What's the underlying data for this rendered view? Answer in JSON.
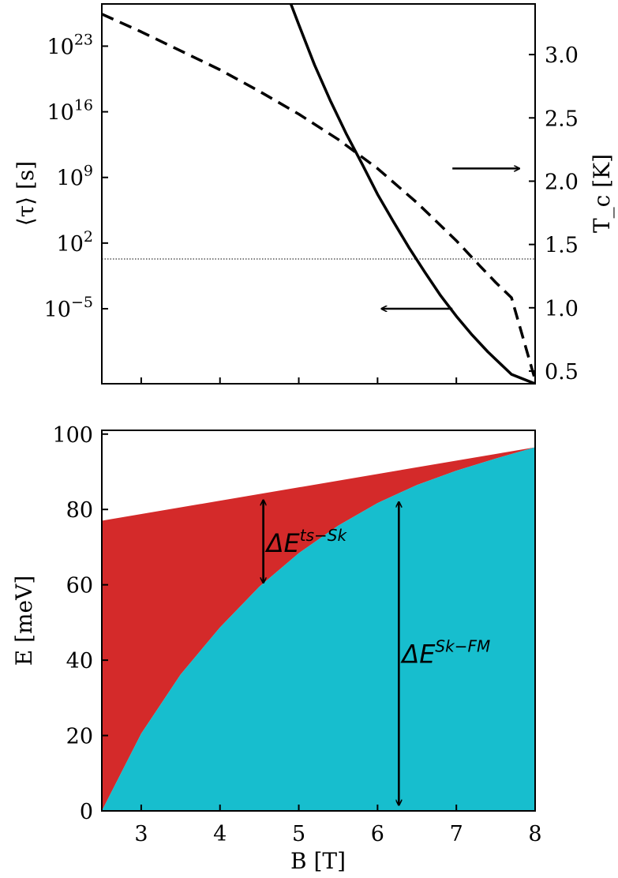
{
  "chart_data": [
    {
      "type": "line",
      "panel": "top",
      "xlabel": "",
      "ylabel": "⟨τ⟩ [s]",
      "ylabel_right": "T_c [K]",
      "xlim": [
        2.5,
        8.0
      ],
      "y_scale": "log",
      "ylim_log10": [
        -13,
        27.5
      ],
      "ylim_right": [
        0.4,
        3.4
      ],
      "y_ticks": [
        {
          "base": "10",
          "exp": "23",
          "log10": 23
        },
        {
          "base": "10",
          "exp": "16",
          "log10": 16
        },
        {
          "base": "10",
          "exp": "9",
          "log10": 9
        },
        {
          "base": "10",
          "exp": "2",
          "log10": 2
        },
        {
          "base": "10",
          "exp": "−5",
          "log10": -5
        }
      ],
      "y_right_ticks": [
        "3.0",
        "2.5",
        "2.0",
        "1.5",
        "1.0",
        "0.5"
      ],
      "y_right_tick_values": [
        3.0,
        2.5,
        2.0,
        1.5,
        1.0,
        0.5
      ],
      "series": [
        {
          "axis": "left",
          "style": "solid",
          "x": [
            4.9,
            5.0,
            5.2,
            5.4,
            5.6,
            5.8,
            6.0,
            6.2,
            6.4,
            6.6,
            6.8,
            7.0,
            7.2,
            7.4,
            7.6,
            7.7,
            8.0
          ],
          "log10_y": [
            27.5,
            25.3,
            21.0,
            17.2,
            13.7,
            10.5,
            7.2,
            4.3,
            1.5,
            -1.1,
            -3.6,
            -5.8,
            -7.8,
            -9.6,
            -11.2,
            -12.0,
            -13.0
          ]
        },
        {
          "axis": "right",
          "style": "dashed",
          "x": [
            2.5,
            3.0,
            3.5,
            4.0,
            4.5,
            5.0,
            5.5,
            6.0,
            6.5,
            7.0,
            7.3,
            7.5,
            7.7,
            8.0
          ],
          "y": [
            3.32,
            3.18,
            3.03,
            2.88,
            2.71,
            2.53,
            2.33,
            2.1,
            1.83,
            1.53,
            1.33,
            1.2,
            1.08,
            0.43
          ]
        }
      ],
      "hline_log10": 0.3,
      "arrows": [
        {
          "direction": "right",
          "target": "right axis (T_c)",
          "x": [
            6.95,
            7.8
          ],
          "log10_y": 9.95
        },
        {
          "direction": "left",
          "target": "left axis (τ)",
          "x": [
            6.95,
            6.05
          ],
          "log10_y": -5
        }
      ]
    },
    {
      "type": "area",
      "panel": "bottom",
      "xlabel": "B [T]",
      "ylabel": "E [meV]",
      "xlim": [
        2.5,
        8.0
      ],
      "ylim": [
        0,
        101
      ],
      "x_ticks": [
        "3",
        "4",
        "5",
        "6",
        "7",
        "8"
      ],
      "x_tick_values": [
        3,
        4,
        5,
        6,
        7,
        8
      ],
      "y_ticks": [
        "0",
        "20",
        "40",
        "60",
        "80",
        "100"
      ],
      "y_tick_values": [
        0,
        20,
        40,
        60,
        80,
        100
      ],
      "colors": {
        "upper": "#d42a2a",
        "lower": "#17bece"
      },
      "series": [
        {
          "fill": "upper",
          "x": [
            2.5,
            8.0
          ],
          "values": [
            77.0,
            96.5
          ]
        },
        {
          "fill": "lower",
          "x": [
            2.5,
            3.0,
            3.5,
            4.0,
            4.5,
            5.0,
            5.5,
            6.0,
            6.5,
            7.0,
            7.5,
            8.0
          ],
          "values": [
            0,
            20.5,
            36.2,
            48.7,
            59.5,
            68.4,
            75.7,
            81.7,
            86.5,
            90.3,
            93.5,
            96.5
          ]
        }
      ],
      "annotations": [
        {
          "base": "ΔE",
          "sup": "ts−Sk",
          "x": 4.55,
          "y_range": [
            60.5,
            82.5
          ]
        },
        {
          "base": "ΔE",
          "sup": "Sk−FM",
          "x": 6.27,
          "y_range": [
            1.5,
            82
          ]
        }
      ]
    }
  ]
}
